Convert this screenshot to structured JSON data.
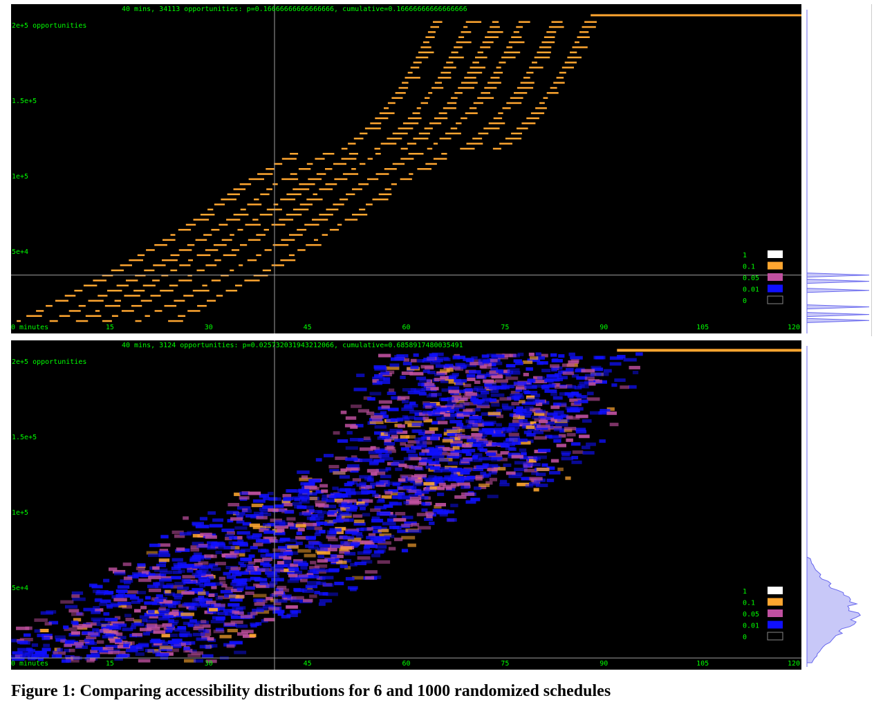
{
  "figure": {
    "caption": "Figure 1: Comparing accessibility distributions for 6 and 1000 randomized schedules"
  },
  "colors": {
    "background": "#000000",
    "axis_text": "#00ff00",
    "crosshair": "#a0a0a0",
    "legend_1": "#ffffff",
    "legend_0_1": "#ffa630",
    "legend_0_05": "#c050a0",
    "legend_0_01": "#1010ff",
    "side_histogram": "#6666ee"
  },
  "chart_data": [
    {
      "type": "heatmap",
      "title": "40 mins, 34113 opportunities: p=0.16666666666666666, cumulative=0.16666666666666666",
      "xlabel": "minutes",
      "ylabel": "opportunities",
      "x_ticks": [
        "0 minutes",
        "15",
        "30",
        "45",
        "60",
        "75",
        "90",
        "105",
        "120"
      ],
      "y_ticks": [
        "2e+5 opportunities",
        "1.5e+5",
        "1e+5",
        "5e+4"
      ],
      "xlim": [
        0,
        120
      ],
      "ylim": [
        0,
        210000
      ],
      "crosshair": {
        "minutes": 40,
        "opportunities": 34113
      },
      "legend": [
        {
          "label": "1",
          "color": "#ffffff"
        },
        {
          "label": "0.1",
          "color": "#ffa630"
        },
        {
          "label": "0.05",
          "color": "#c050a0"
        },
        {
          "label": "0.01",
          "color": "#1010ff"
        },
        {
          "label": "0",
          "color": "#000000"
        }
      ],
      "schedules": 6,
      "curves_note": "6 staircase curves, each schedule p=1/6",
      "curve_offsets_minutes": [
        -9,
        -4,
        0,
        4,
        9,
        14
      ],
      "side_histogram_peaks": [
        34113,
        30000,
        24000,
        13000,
        8000,
        4000
      ]
    },
    {
      "type": "heatmap",
      "title": "40 mins, 3124 opportunities: p=0.025732031943212066, cumulative=0.6858917480035491",
      "xlabel": "minutes",
      "ylabel": "opportunities",
      "x_ticks": [
        "0 minutes",
        "15",
        "30",
        "45",
        "60",
        "75",
        "90",
        "105",
        "120"
      ],
      "y_ticks": [
        "2e+5 opportunities",
        "1.5e+5",
        "1e+5",
        "5e+4"
      ],
      "xlim": [
        0,
        120
      ],
      "ylim": [
        0,
        210000
      ],
      "crosshair": {
        "minutes": 40,
        "opportunities": 3124
      },
      "legend": [
        {
          "label": "1",
          "color": "#ffffff"
        },
        {
          "label": "0.1",
          "color": "#ffa630"
        },
        {
          "label": "0.05",
          "color": "#c050a0"
        },
        {
          "label": "0.01",
          "color": "#1010ff"
        },
        {
          "label": "0",
          "color": "#000000"
        }
      ],
      "schedules": 1000
    }
  ]
}
